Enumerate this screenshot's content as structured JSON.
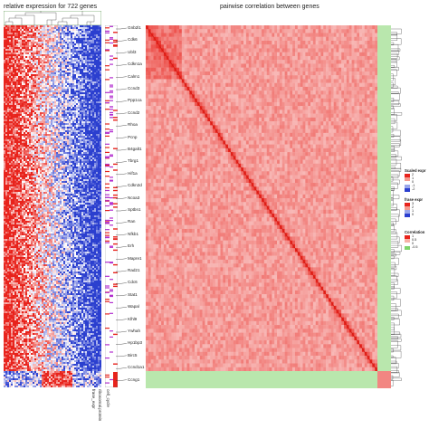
{
  "chart_data": [
    {
      "type": "heatmap",
      "title": "relative expression for 722 genes",
      "columns": [
        "frase_expr",
        "ribosomal.protein",
        "cell_cycle"
      ],
      "row_labels": [
        "Gnb2l1",
        "Cdk6",
        "Ubl3",
        "Cdkn1a",
        "Calm1",
        "Ccnd3",
        "Ppp1ca",
        "Ccnd2",
        "Rhoa",
        "Pcnp",
        "B4galt1",
        "Tbrg1",
        "Hif1a",
        "Cdkn2d",
        "Ncoa3",
        "Sptbn1",
        "Ran",
        "Nfkb1",
        "Erh",
        "Mapre1",
        "Rad21",
        "Cdc6",
        "Stat1",
        "Wapal",
        "Klhl9",
        "Ywhah",
        "Hp1bp3",
        "Birc5",
        "Ccnd1a1",
        "Ccng1"
      ],
      "color_scale": {
        "low": "#2b3fcf",
        "mid": "#ffffff",
        "high": "#e8231c"
      }
    },
    {
      "type": "heatmap",
      "title": "pairwise correlation between genes",
      "color_scale": {
        "low": "#ffffff",
        "high": "#e8231c",
        "negative": "#7fd46a"
      }
    }
  ],
  "legends": [
    {
      "title": "Scaled expr",
      "ticks": [
        "2",
        "1",
        "0",
        "-1",
        "-2"
      ],
      "colors": [
        "#e8231c",
        "#f49a8e",
        "#ffffff",
        "#9aa6ea",
        "#2b3fcf"
      ]
    },
    {
      "title": "frase expr",
      "ticks": [
        "3",
        "2",
        "1",
        "0"
      ],
      "colors": [
        "#e8231c",
        "#f49a8e",
        "#9aa6ea",
        "#2b3fcf"
      ]
    },
    {
      "title": "Correlation",
      "ticks": [
        "1",
        "0.5",
        "0",
        "-0.5"
      ],
      "colors": [
        "#e8231c",
        "#f7b1a6",
        "#ffffff",
        "#7fd46a"
      ]
    }
  ]
}
